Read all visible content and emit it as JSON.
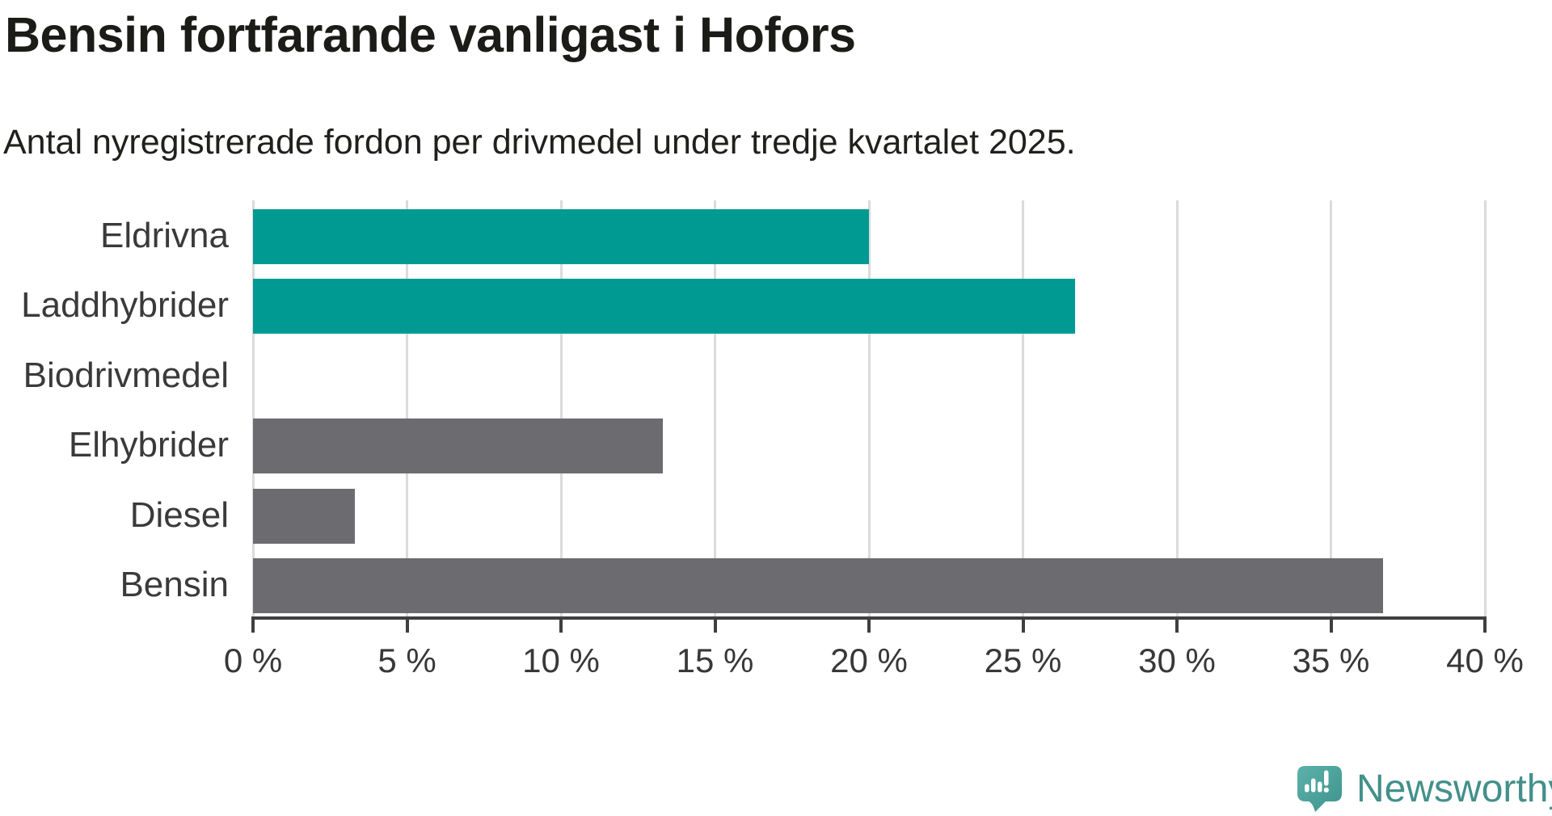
{
  "header": {
    "title": "Bensin fortfarande vanligast i Hofors",
    "subtitle": "Antal nyregistrerade fordon per drivmedel under tredje kvartalet 2025."
  },
  "chart_data": {
    "type": "bar",
    "orientation": "horizontal",
    "title": "Bensin fortfarande vanligast i Hofors",
    "subtitle": "Antal nyregistrerade fordon per drivmedel under tredje kvartalet 2025.",
    "categories": [
      "Eldrivna",
      "Laddhybrider",
      "Biodrivmedel",
      "Elhybrider",
      "Diesel",
      "Bensin"
    ],
    "values": [
      20,
      26.7,
      0,
      13.3,
      3.3,
      36.7
    ],
    "unit": "%",
    "bar_colors": [
      "#009a93",
      "#009a93",
      "#6c6c70",
      "#6c6c70",
      "#6c6c70",
      "#6c6c70"
    ],
    "highlight_color": "#009a93",
    "base_color": "#6c6c70",
    "xlim": [
      0,
      40
    ],
    "x_ticks": [
      0,
      5,
      10,
      15,
      20,
      25,
      30,
      35,
      40
    ],
    "x_tick_labels": [
      "0 %",
      "5 %",
      "10 %",
      "15 %",
      "20 %",
      "25 %",
      "30 %",
      "35 %",
      "40 %"
    ],
    "grid": "vertical",
    "gridline_color": "#dbdbdc",
    "axis_color": "#3f3f3f",
    "label_color": "#3a3a3a"
  },
  "footer": {
    "brand": "Newsworthy",
    "brand_text_color": "#43908a",
    "logo_color_light": "#5cb2aa",
    "logo_color_dark": "#3e948d"
  }
}
